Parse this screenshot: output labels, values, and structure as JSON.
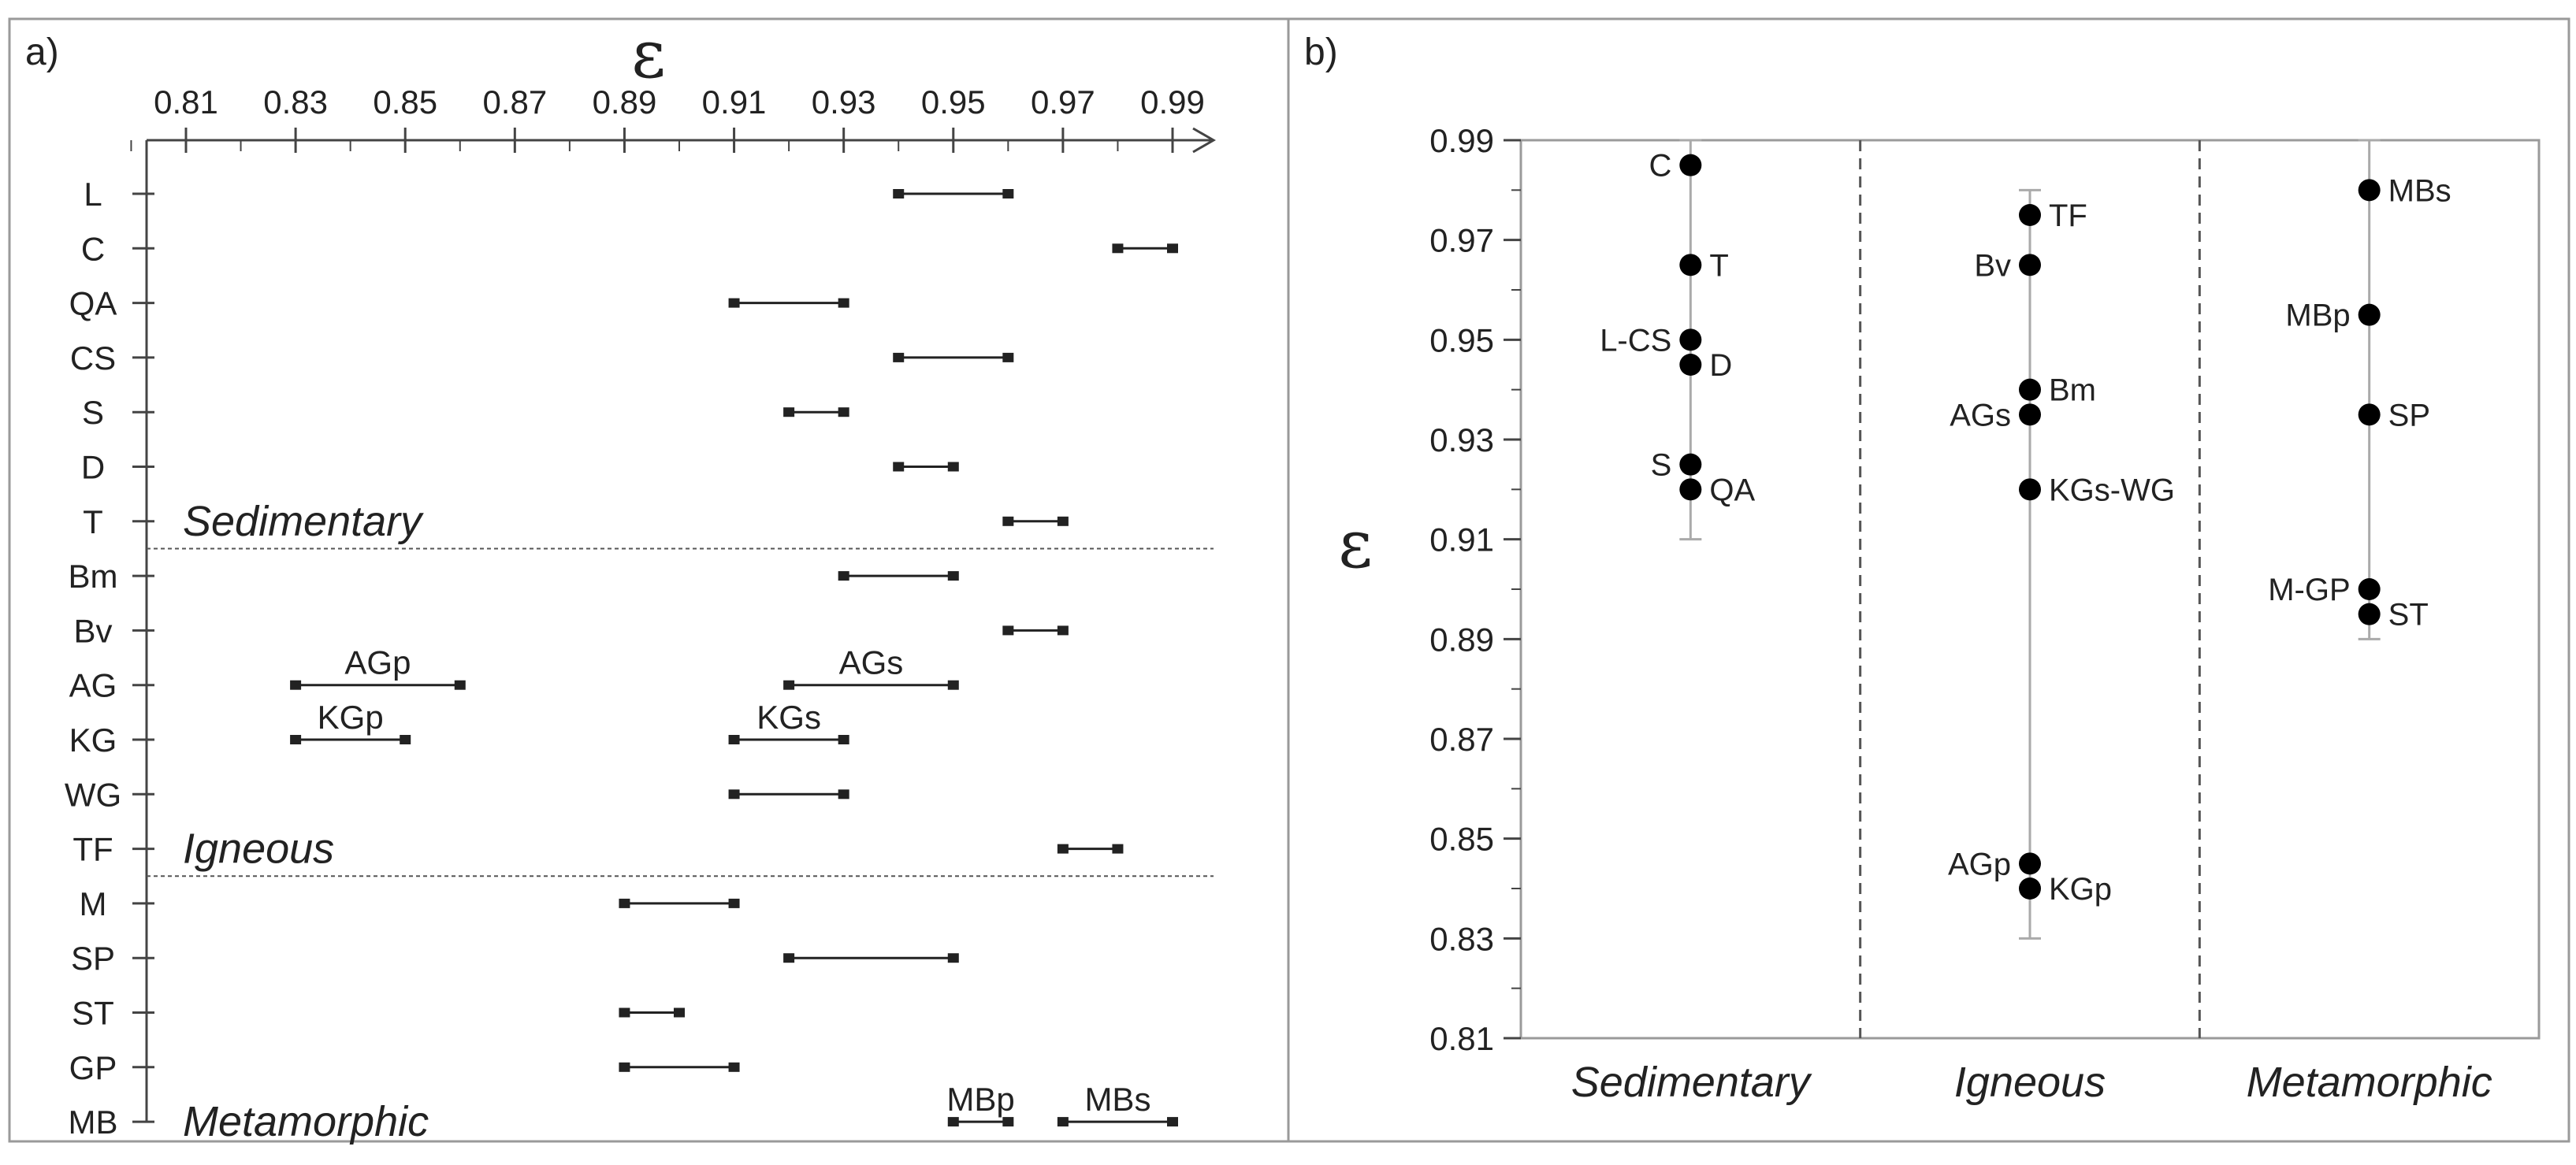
{
  "colors": {
    "line": "#222222",
    "axis": "#444444",
    "grid": "#aaaaaa",
    "point": "#000000",
    "frame": "#9a9a9a"
  },
  "panel_a": {
    "label": "a)",
    "eps_symbol": "ε"
  },
  "panel_b": {
    "label": "b)",
    "eps_symbol": "ε"
  },
  "chart_data": [
    {
      "type": "range",
      "panel": "a)",
      "axis_title": "ε",
      "xlim": [
        0.8,
        0.995
      ],
      "ticks": [
        0.81,
        0.83,
        0.85,
        0.87,
        0.89,
        0.91,
        0.93,
        0.95,
        0.97,
        0.99
      ],
      "tick_labels": [
        "0.81",
        "0.83",
        "0.85",
        "0.87",
        "0.89",
        "0.91",
        "0.93",
        "0.95",
        "0.97",
        "0.99"
      ],
      "minor_step": 0.01,
      "categories": [
        "L",
        "C",
        "QA",
        "CS",
        "S",
        "D",
        "T",
        "Bm",
        "Bv",
        "AG",
        "KG",
        "WG",
        "TF",
        "M",
        "SP",
        "ST",
        "GP",
        "MB"
      ],
      "ranges": [
        {
          "row": 0,
          "min": 0.94,
          "max": 0.96
        },
        {
          "row": 1,
          "min": 0.98,
          "max": 0.99
        },
        {
          "row": 2,
          "min": 0.91,
          "max": 0.93
        },
        {
          "row": 3,
          "min": 0.94,
          "max": 0.96
        },
        {
          "row": 4,
          "min": 0.92,
          "max": 0.93
        },
        {
          "row": 5,
          "min": 0.94,
          "max": 0.95
        },
        {
          "row": 6,
          "min": 0.96,
          "max": 0.97
        },
        {
          "row": 7,
          "min": 0.93,
          "max": 0.95
        },
        {
          "row": 8,
          "min": 0.96,
          "max": 0.97
        },
        {
          "row": 9,
          "min": 0.83,
          "max": 0.86,
          "label": "AGp"
        },
        {
          "row": 9,
          "min": 0.92,
          "max": 0.95,
          "label": "AGs"
        },
        {
          "row": 10,
          "min": 0.83,
          "max": 0.85,
          "label": "KGp"
        },
        {
          "row": 10,
          "min": 0.91,
          "max": 0.93,
          "label": "KGs"
        },
        {
          "row": 11,
          "min": 0.91,
          "max": 0.93
        },
        {
          "row": 12,
          "min": 0.97,
          "max": 0.98
        },
        {
          "row": 13,
          "min": 0.89,
          "max": 0.91
        },
        {
          "row": 14,
          "min": 0.92,
          "max": 0.95
        },
        {
          "row": 15,
          "min": 0.89,
          "max": 0.9
        },
        {
          "row": 16,
          "min": 0.89,
          "max": 0.91
        },
        {
          "row": 17,
          "min": 0.95,
          "max": 0.96,
          "label": "MBp"
        },
        {
          "row": 17,
          "min": 0.97,
          "max": 0.99,
          "label": "MBs"
        }
      ],
      "groups": [
        {
          "name": "Sedimentary",
          "after_row": 6
        },
        {
          "name": "Igneous",
          "after_row": 12
        },
        {
          "name": "Metamorphic",
          "after_row": 17
        }
      ]
    },
    {
      "type": "scatter",
      "panel": "b)",
      "ylabel": "ε",
      "ylim": [
        0.81,
        0.99
      ],
      "yticks": [
        0.81,
        0.83,
        0.85,
        0.87,
        0.89,
        0.91,
        0.93,
        0.95,
        0.97,
        0.99
      ],
      "ytick_labels": [
        "0.81",
        "0.83",
        "0.85",
        "0.87",
        "0.89",
        "0.91",
        "0.93",
        "0.95",
        "0.97",
        "0.99"
      ],
      "minor_step": 0.01,
      "categories": [
        "Sedimentary",
        "Igneous",
        "Metamorphic"
      ],
      "whiskers": [
        {
          "category": 0,
          "min": 0.91,
          "max": 0.99
        },
        {
          "category": 1,
          "min": 0.83,
          "max": 0.98
        },
        {
          "category": 2,
          "min": 0.89,
          "max": 0.99
        }
      ],
      "points": [
        {
          "category": 0,
          "y": 0.985,
          "label": "C",
          "side": "left"
        },
        {
          "category": 0,
          "y": 0.965,
          "label": "T",
          "side": "right"
        },
        {
          "category": 0,
          "y": 0.95,
          "label": "L-CS",
          "side": "left"
        },
        {
          "category": 0,
          "y": 0.945,
          "label": "D",
          "side": "right"
        },
        {
          "category": 0,
          "y": 0.925,
          "label": "S",
          "side": "left"
        },
        {
          "category": 0,
          "y": 0.92,
          "label": "QA",
          "side": "right"
        },
        {
          "category": 1,
          "y": 0.975,
          "label": "TF",
          "side": "right"
        },
        {
          "category": 1,
          "y": 0.965,
          "label": "Bv",
          "side": "left"
        },
        {
          "category": 1,
          "y": 0.94,
          "label": "Bm",
          "side": "right"
        },
        {
          "category": 1,
          "y": 0.935,
          "label": "AGs",
          "side": "left"
        },
        {
          "category": 1,
          "y": 0.92,
          "label": "KGs-WG",
          "side": "right"
        },
        {
          "category": 1,
          "y": 0.845,
          "label": "AGp",
          "side": "left"
        },
        {
          "category": 1,
          "y": 0.84,
          "label": "KGp",
          "side": "right"
        },
        {
          "category": 2,
          "y": 0.98,
          "label": "MBs",
          "side": "right"
        },
        {
          "category": 2,
          "y": 0.955,
          "label": "MBp",
          "side": "left"
        },
        {
          "category": 2,
          "y": 0.935,
          "label": "SP",
          "side": "right"
        },
        {
          "category": 2,
          "y": 0.9,
          "label": "M-GP",
          "side": "left"
        },
        {
          "category": 2,
          "y": 0.895,
          "label": "ST",
          "side": "right"
        }
      ]
    }
  ]
}
